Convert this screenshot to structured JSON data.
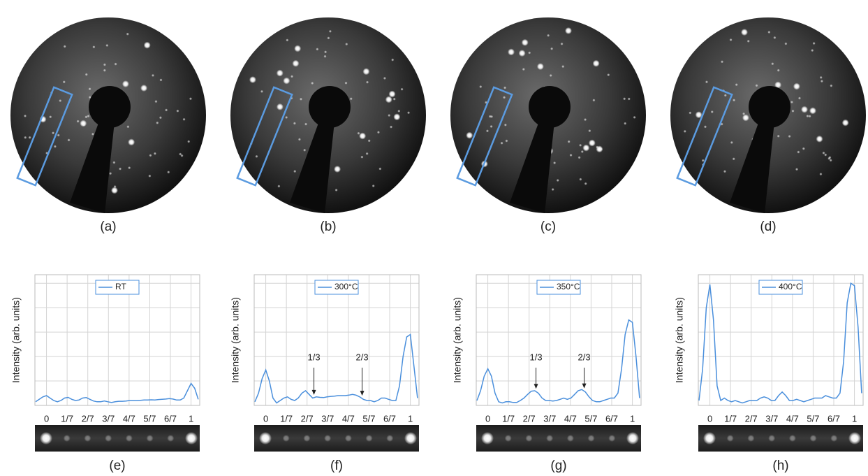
{
  "images": [
    {
      "label": "(a)"
    },
    {
      "label": "(b)"
    },
    {
      "label": "(c)"
    },
    {
      "label": "(d)"
    }
  ],
  "chart_data": [
    {
      "type": "line",
      "panel_label": "(e)",
      "ylabel": "Intensity (arb. units)",
      "legend": "top",
      "x": [
        -0.075,
        -0.05,
        -0.025,
        0,
        0.025,
        0.05,
        0.075,
        0.1,
        0.125,
        0.15,
        0.175,
        0.2,
        0.225,
        0.25,
        0.275,
        0.3,
        0.325,
        0.35,
        0.375,
        0.4,
        0.425,
        0.45,
        0.475,
        0.5,
        0.525,
        0.55,
        0.575,
        0.6,
        0.625,
        0.65,
        0.675,
        0.7,
        0.725,
        0.75,
        0.775,
        0.8,
        0.825,
        0.85,
        0.875,
        0.9,
        0.925,
        0.95,
        0.975,
        1,
        1.025,
        1.05
      ],
      "series": [
        {
          "name": "RT",
          "color": "#4a8fdc",
          "values": [
            0.15,
            0.25,
            0.35,
            0.4,
            0.3,
            0.2,
            0.15,
            0.2,
            0.3,
            0.33,
            0.25,
            0.2,
            0.22,
            0.3,
            0.32,
            0.25,
            0.18,
            0.15,
            0.15,
            0.18,
            0.15,
            0.12,
            0.15,
            0.17,
            0.17,
            0.18,
            0.2,
            0.2,
            0.2,
            0.21,
            0.22,
            0.22,
            0.23,
            0.22,
            0.24,
            0.25,
            0.26,
            0.28,
            0.26,
            0.22,
            0.22,
            0.3,
            0.6,
            0.9,
            0.7,
            0.25
          ]
        }
      ],
      "xlim": [
        -0.08,
        1.06
      ],
      "ylim": [
        0,
        5.35
      ],
      "xticks": [
        0,
        {
          "value": 0.142857,
          "label": "1/7"
        },
        {
          "value": 0.285714,
          "label": "2/7"
        },
        {
          "value": 0.428571,
          "label": "3/7"
        },
        {
          "value": 0.571429,
          "label": "4/7"
        },
        {
          "value": 0.714286,
          "label": "5/7"
        },
        {
          "value": 0.857143,
          "label": "6/7"
        },
        1
      ],
      "yticks": [
        0,
        1,
        2,
        3,
        4,
        5
      ],
      "grid": true,
      "annotations": []
    },
    {
      "type": "line",
      "panel_label": "(f)",
      "ylabel": "Intensity (arb. units)",
      "legend": "top",
      "x": [
        -0.075,
        -0.05,
        -0.025,
        0,
        0.025,
        0.05,
        0.075,
        0.1,
        0.125,
        0.15,
        0.175,
        0.2,
        0.225,
        0.25,
        0.275,
        0.3,
        0.325,
        0.35,
        0.375,
        0.4,
        0.425,
        0.45,
        0.475,
        0.5,
        0.525,
        0.55,
        0.575,
        0.6,
        0.625,
        0.65,
        0.675,
        0.7,
        0.725,
        0.75,
        0.775,
        0.8,
        0.825,
        0.85,
        0.875,
        0.9,
        0.925,
        0.95,
        0.975,
        1,
        1.025,
        1.05
      ],
      "series": [
        {
          "name": "300°C",
          "color": "#4a8fdc",
          "values": [
            0.15,
            0.5,
            1.1,
            1.45,
            1.0,
            0.3,
            0.1,
            0.2,
            0.3,
            0.35,
            0.25,
            0.2,
            0.3,
            0.5,
            0.6,
            0.45,
            0.3,
            0.35,
            0.33,
            0.32,
            0.35,
            0.37,
            0.38,
            0.4,
            0.4,
            0.4,
            0.42,
            0.45,
            0.42,
            0.35,
            0.25,
            0.2,
            0.2,
            0.15,
            0.2,
            0.3,
            0.3,
            0.25,
            0.2,
            0.2,
            0.8,
            2.0,
            2.8,
            2.9,
            1.6,
            0.3
          ]
        }
      ],
      "xlim": [
        -0.08,
        1.06
      ],
      "ylim": [
        0,
        5.35
      ],
      "xticks": [
        0,
        {
          "value": 0.142857,
          "label": "1/7"
        },
        {
          "value": 0.285714,
          "label": "2/7"
        },
        {
          "value": 0.428571,
          "label": "3/7"
        },
        {
          "value": 0.571429,
          "label": "4/7"
        },
        {
          "value": 0.714286,
          "label": "5/7"
        },
        {
          "value": 0.857143,
          "label": "6/7"
        },
        1
      ],
      "yticks": [
        0,
        1,
        2,
        3,
        4,
        5
      ],
      "grid": true,
      "annotations": [
        {
          "text": "1/3",
          "x": 0.3333
        },
        {
          "text": "2/3",
          "x": 0.6667
        }
      ]
    },
    {
      "type": "line",
      "panel_label": "(g)",
      "ylabel": "Intensity (arb. units)",
      "legend": "top",
      "x": [
        -0.075,
        -0.05,
        -0.025,
        0,
        0.025,
        0.05,
        0.075,
        0.1,
        0.125,
        0.15,
        0.175,
        0.2,
        0.225,
        0.25,
        0.275,
        0.3,
        0.325,
        0.35,
        0.375,
        0.4,
        0.425,
        0.45,
        0.475,
        0.5,
        0.525,
        0.55,
        0.575,
        0.6,
        0.625,
        0.65,
        0.675,
        0.7,
        0.725,
        0.75,
        0.775,
        0.8,
        0.825,
        0.85,
        0.875,
        0.9,
        0.925,
        0.95,
        0.975,
        1,
        1.025,
        1.05
      ],
      "series": [
        {
          "name": "350°C",
          "color": "#4a8fdc",
          "values": [
            0.2,
            0.6,
            1.2,
            1.5,
            1.2,
            0.5,
            0.15,
            0.1,
            0.15,
            0.15,
            0.12,
            0.12,
            0.2,
            0.3,
            0.45,
            0.58,
            0.6,
            0.5,
            0.3,
            0.2,
            0.2,
            0.18,
            0.2,
            0.25,
            0.3,
            0.25,
            0.3,
            0.45,
            0.6,
            0.65,
            0.55,
            0.35,
            0.2,
            0.15,
            0.15,
            0.2,
            0.25,
            0.3,
            0.3,
            0.5,
            1.5,
            2.9,
            3.5,
            3.4,
            2.0,
            0.3
          ]
        }
      ],
      "xlim": [
        -0.08,
        1.06
      ],
      "ylim": [
        0,
        5.35
      ],
      "xticks": [
        0,
        {
          "value": 0.142857,
          "label": "1/7"
        },
        {
          "value": 0.285714,
          "label": "2/7"
        },
        {
          "value": 0.428571,
          "label": "3/7"
        },
        {
          "value": 0.571429,
          "label": "4/7"
        },
        {
          "value": 0.714286,
          "label": "5/7"
        },
        {
          "value": 0.857143,
          "label": "6/7"
        },
        1
      ],
      "yticks": [
        0,
        1,
        2,
        3,
        4,
        5
      ],
      "grid": true,
      "annotations": [
        {
          "text": "1/3",
          "x": 0.3333
        },
        {
          "text": "2/3",
          "x": 0.6667
        }
      ]
    },
    {
      "type": "line",
      "panel_label": "(h)",
      "ylabel": "Intensity (arb. units)",
      "legend": "top",
      "x": [
        -0.075,
        -0.05,
        -0.025,
        0,
        0.025,
        0.05,
        0.075,
        0.1,
        0.125,
        0.15,
        0.175,
        0.2,
        0.225,
        0.25,
        0.275,
        0.3,
        0.325,
        0.35,
        0.375,
        0.4,
        0.425,
        0.45,
        0.475,
        0.5,
        0.525,
        0.55,
        0.575,
        0.6,
        0.625,
        0.65,
        0.675,
        0.7,
        0.725,
        0.75,
        0.775,
        0.8,
        0.825,
        0.85,
        0.875,
        0.9,
        0.925,
        0.95,
        0.975,
        1,
        1.025,
        1.05
      ],
      "series": [
        {
          "name": "400°C",
          "color": "#4a8fdc",
          "values": [
            0.2,
            1.5,
            4.0,
            4.95,
            3.5,
            0.8,
            0.2,
            0.3,
            0.2,
            0.15,
            0.2,
            0.15,
            0.1,
            0.15,
            0.2,
            0.2,
            0.2,
            0.3,
            0.35,
            0.3,
            0.2,
            0.2,
            0.4,
            0.55,
            0.4,
            0.2,
            0.2,
            0.25,
            0.2,
            0.15,
            0.2,
            0.25,
            0.3,
            0.3,
            0.3,
            0.4,
            0.35,
            0.3,
            0.3,
            0.5,
            1.8,
            4.2,
            5.0,
            4.9,
            3.2,
            0.5
          ]
        }
      ],
      "xlim": [
        -0.08,
        1.06
      ],
      "ylim": [
        0,
        5.35
      ],
      "xticks": [
        0,
        {
          "value": 0.142857,
          "label": "1/7"
        },
        {
          "value": 0.285714,
          "label": "2/7"
        },
        {
          "value": 0.428571,
          "label": "3/7"
        },
        {
          "value": 0.571429,
          "label": "4/7"
        },
        {
          "value": 0.714286,
          "label": "5/7"
        },
        {
          "value": 0.857143,
          "label": "6/7"
        },
        1
      ],
      "yticks": [
        0,
        1,
        2,
        3,
        4,
        5
      ],
      "grid": true,
      "annotations": []
    }
  ]
}
